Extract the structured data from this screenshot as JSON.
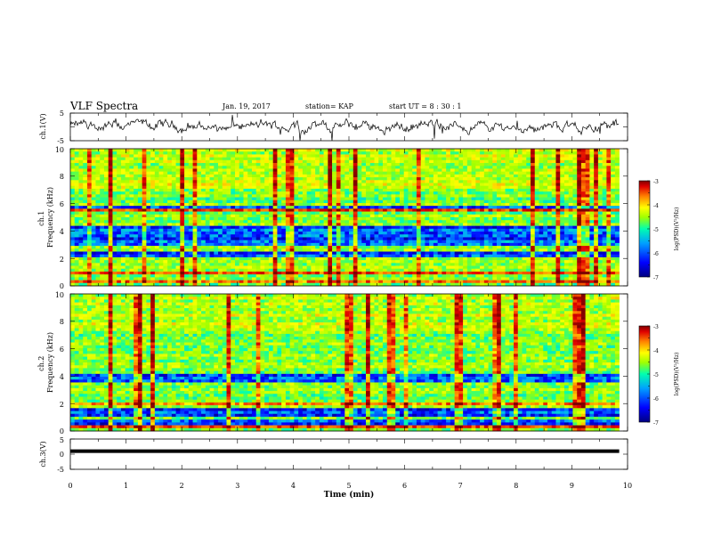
{
  "header": {
    "title": "VLF Spectra",
    "date": "Jan. 19, 2017",
    "station": "station= KAP",
    "start": "start UT =  8 : 30 : 1"
  },
  "chart_data": [
    {
      "type": "line",
      "panel": "ch1-waveform",
      "ylabel": "ch.1(V)",
      "ylim": [
        -5,
        5
      ],
      "yticks": [
        "5",
        "-5"
      ],
      "x_range": [
        0,
        9.85
      ],
      "mean_level": 0.2,
      "color": "#000000"
    },
    {
      "type": "heatmap",
      "panel": "ch1-spectrogram",
      "ylabel": "ch.1\nFrequency (kHz)",
      "ylim": [
        0,
        10
      ],
      "yticks": [
        "0",
        "2",
        "4",
        "6",
        "8",
        "10"
      ],
      "x_range": [
        0,
        9.85
      ],
      "z_scale": "log",
      "colorbar": {
        "label": "log(PSD)(V²/Hz)",
        "range": [
          -7,
          -3
        ],
        "ticks": [
          "-3",
          "-4",
          "-5",
          "-6",
          "-7"
        ]
      },
      "dark_bands_khz": [
        [
          3.0,
          4.3
        ],
        [
          2.0,
          2.6
        ],
        [
          5.6,
          5.9
        ]
      ],
      "orange_bands_khz": [
        0.4,
        0.9,
        5.5
      ]
    },
    {
      "type": "heatmap",
      "panel": "ch2-spectrogram",
      "ylabel": "ch.2\nFrequency (kHz)",
      "ylim": [
        0,
        10
      ],
      "yticks": [
        "0",
        "2",
        "4",
        "6",
        "8",
        "10"
      ],
      "x_range": [
        0,
        9.85
      ],
      "z_scale": "log",
      "colorbar": {
        "label": "log(PSD)(V²/Hz)",
        "range": [
          -7,
          -3
        ],
        "ticks": [
          "-3",
          "-4",
          "-5",
          "-6",
          "-7"
        ]
      },
      "dark_bands_khz": [
        [
          1.0,
          1.9
        ],
        [
          3.6,
          4.2
        ],
        [
          0.5,
          0.9
        ]
      ],
      "orange_bands_khz": [
        2.0,
        1.7,
        0.4
      ]
    },
    {
      "type": "line",
      "panel": "ch3-waveform",
      "ylabel": "ch.3(V)",
      "ylim": [
        -5,
        5
      ],
      "yticks": [
        "5",
        "0",
        "-5"
      ],
      "x_range": [
        0,
        9.85
      ],
      "constant_value": 1,
      "color": "#000000"
    }
  ],
  "xaxis": {
    "label": "Time (min)",
    "range": [
      0,
      10
    ],
    "ticks": [
      "0",
      "1",
      "2",
      "3",
      "4",
      "5",
      "6",
      "7",
      "8",
      "9",
      "10"
    ]
  },
  "colors": {
    "colormap": [
      "#000080",
      "#0000ff",
      "#00a0ff",
      "#00ffb0",
      "#a0ff00",
      "#ffff00",
      "#ff8000",
      "#e00000",
      "#800000"
    ],
    "waveform": "#000000"
  }
}
